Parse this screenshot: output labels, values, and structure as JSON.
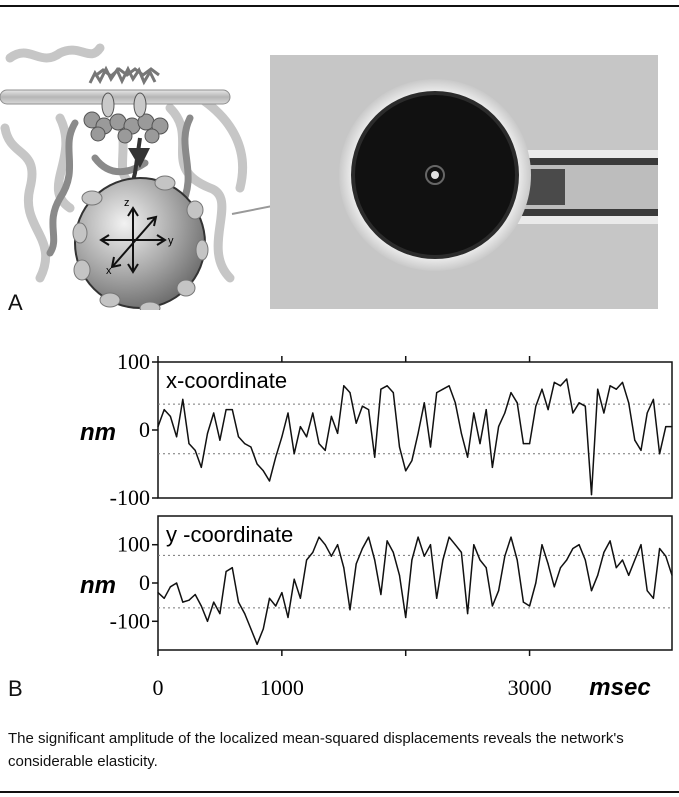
{
  "figure": {
    "panel_a_label": "A",
    "panel_b_label": "B",
    "schematic_axes": {
      "z": "z",
      "y": "y",
      "x": "x"
    },
    "caption": "The significant amplitude of the localized mean-squared displacements reveals the network's considerable elasticity."
  },
  "chart_data": [
    {
      "type": "line",
      "title": "x-coordinate",
      "ylabel": "nm",
      "xlabel": "",
      "ylim": [
        -100,
        100
      ],
      "xlim": [
        0,
        4150
      ],
      "y_ticks": [
        "100",
        "0",
        "-100"
      ],
      "dashed_levels": [
        38,
        -35
      ],
      "series": [
        {
          "x": [
            0,
            50,
            100,
            150,
            200,
            250,
            300,
            350,
            400,
            450,
            500,
            550,
            600,
            650,
            700,
            750,
            800,
            850,
            900,
            950,
            1000,
            1050,
            1100,
            1150,
            1200,
            1250,
            1300,
            1350,
            1400,
            1450,
            1500,
            1550,
            1600,
            1650,
            1700,
            1750,
            1800,
            1850,
            1900,
            1950,
            2000,
            2050,
            2100,
            2150,
            2200,
            2250,
            2300,
            2350,
            2400,
            2450,
            2500,
            2550,
            2600,
            2650,
            2700,
            2750,
            2800,
            2850,
            2900,
            2950,
            3000,
            3050,
            3100,
            3150,
            3200,
            3250,
            3300,
            3350,
            3400,
            3450,
            3500,
            3550,
            3600,
            3650,
            3700,
            3750,
            3800,
            3850,
            3900,
            3950,
            4000,
            4050,
            4100,
            4150
          ],
          "values": [
            5,
            30,
            20,
            -10,
            45,
            -20,
            -30,
            -55,
            -5,
            25,
            -15,
            30,
            30,
            -10,
            -20,
            -25,
            -50,
            -60,
            -75,
            -40,
            -10,
            25,
            -35,
            5,
            -10,
            25,
            -20,
            -30,
            20,
            -5,
            65,
            55,
            10,
            35,
            30,
            -40,
            60,
            65,
            55,
            -25,
            -60,
            -45,
            -5,
            40,
            -25,
            55,
            60,
            65,
            40,
            -5,
            -40,
            25,
            -20,
            30,
            -55,
            5,
            25,
            55,
            40,
            -20,
            -20,
            35,
            60,
            30,
            70,
            65,
            75,
            25,
            40,
            35,
            -95,
            60,
            25,
            65,
            60,
            70,
            40,
            -15,
            -30,
            25,
            45,
            -35,
            5,
            5
          ]
        }
      ]
    },
    {
      "type": "line",
      "title": "y -coordinate",
      "ylabel": "nm",
      "xlabel": "msec",
      "ylim": [
        -175,
        175
      ],
      "xlim": [
        0,
        4150
      ],
      "y_ticks": [
        "100",
        "0",
        "-100"
      ],
      "x_ticks": [
        "0",
        "1000",
        "3000"
      ],
      "x_tick_values": [
        0,
        1000,
        3000
      ],
      "dashed_levels": [
        72,
        -65
      ],
      "series": [
        {
          "x": [
            0,
            50,
            100,
            150,
            200,
            250,
            300,
            350,
            400,
            450,
            500,
            550,
            600,
            650,
            700,
            750,
            800,
            850,
            900,
            950,
            1000,
            1050,
            1100,
            1150,
            1200,
            1250,
            1300,
            1350,
            1400,
            1450,
            1500,
            1550,
            1600,
            1650,
            1700,
            1750,
            1800,
            1850,
            1900,
            1950,
            2000,
            2050,
            2100,
            2150,
            2200,
            2250,
            2300,
            2350,
            2400,
            2450,
            2500,
            2550,
            2600,
            2650,
            2700,
            2750,
            2800,
            2850,
            2900,
            2950,
            3000,
            3050,
            3100,
            3150,
            3200,
            3250,
            3300,
            3350,
            3400,
            3450,
            3500,
            3550,
            3600,
            3650,
            3700,
            3750,
            3800,
            3850,
            3900,
            3950,
            4000,
            4050,
            4100,
            4150
          ],
          "values": [
            -25,
            -40,
            -10,
            0,
            -50,
            -45,
            -30,
            -60,
            -100,
            -50,
            -80,
            30,
            40,
            -50,
            -80,
            -120,
            -160,
            -120,
            -40,
            -60,
            -25,
            -90,
            10,
            -40,
            60,
            80,
            120,
            100,
            70,
            100,
            40,
            -70,
            50,
            90,
            120,
            60,
            -30,
            110,
            80,
            20,
            -90,
            60,
            120,
            70,
            100,
            -40,
            60,
            120,
            100,
            80,
            -80,
            100,
            60,
            40,
            -60,
            -20,
            70,
            120,
            60,
            -50,
            -60,
            0,
            100,
            50,
            -10,
            40,
            60,
            90,
            100,
            60,
            -20,
            20,
            80,
            110,
            40,
            60,
            20,
            60,
            100,
            -20,
            -40,
            90,
            70,
            20
          ]
        }
      ]
    }
  ]
}
